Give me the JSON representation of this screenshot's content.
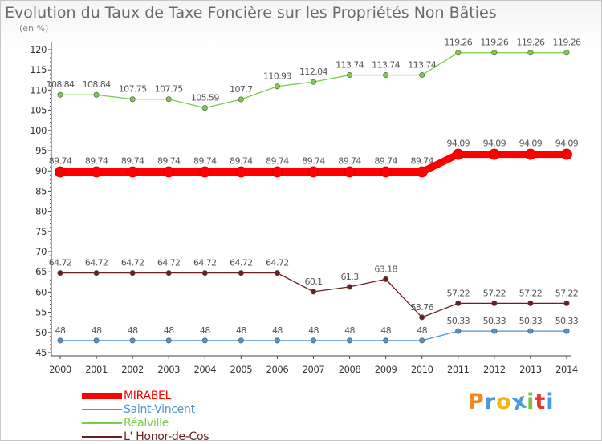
{
  "chart_data": {
    "type": "line",
    "title": "Evolution du Taux de Taxe Foncière sur les Propriétés Non Bâties",
    "unit_label": "(en %)",
    "xlabel": "",
    "ylabel": "(en %)",
    "ylim": [
      45,
      120
    ],
    "ytick_step": 5,
    "yticks": [
      45,
      50,
      55,
      60,
      65,
      70,
      75,
      80,
      85,
      90,
      95,
      100,
      105,
      110,
      115,
      120
    ],
    "categories": [
      "2000",
      "2001",
      "2002",
      "2003",
      "2004",
      "2005",
      "2006",
      "2007",
      "2008",
      "2009",
      "2010",
      "2011",
      "2012",
      "2013",
      "2014"
    ],
    "series": [
      {
        "name": "MIRABEL",
        "color": "#ff0000",
        "emphasis": true,
        "values": [
          89.74,
          89.74,
          89.74,
          89.74,
          89.74,
          89.74,
          89.74,
          89.74,
          89.74,
          89.74,
          89.74,
          94.09,
          94.09,
          94.09,
          94.09
        ],
        "labels": [
          "89.74",
          "89.74",
          "89.74",
          "89.74",
          "89.74",
          "89.74",
          "89.74",
          "89.74",
          "89.74",
          "89.74",
          "89.74",
          "94.09",
          "94.09",
          "94.09",
          "94.09"
        ]
      },
      {
        "name": "Saint-Vincent",
        "color": "#4f94cd",
        "emphasis": false,
        "values": [
          48,
          48,
          48,
          48,
          48,
          48,
          48,
          48,
          48,
          48,
          48,
          50.33,
          50.33,
          50.33,
          50.33
        ],
        "labels": [
          "48",
          "48",
          "48",
          "48",
          "48",
          "48",
          "48",
          "48",
          "48",
          "48",
          "48",
          "50.33",
          "50.33",
          "50.33",
          "50.33"
        ]
      },
      {
        "name": "Réalville",
        "color": "#7acc4a",
        "emphasis": false,
        "values": [
          108.84,
          108.84,
          107.75,
          107.75,
          105.59,
          107.7,
          110.93,
          112.04,
          113.74,
          113.74,
          113.74,
          119.26,
          119.26,
          119.26,
          119.26
        ],
        "labels": [
          "108.84",
          "108.84",
          "107.75",
          "107.75",
          "105.59",
          "107.7",
          "110.93",
          "112.04",
          "113.74",
          "113.74",
          "113.74",
          "119.26",
          "119.26",
          "119.26",
          "119.26"
        ]
      },
      {
        "name": "L' Honor-de-Cos",
        "color": "#6b1f1f",
        "emphasis": false,
        "values": [
          64.72,
          64.72,
          64.72,
          64.72,
          64.72,
          64.72,
          64.72,
          60.1,
          61.3,
          63.18,
          53.76,
          57.22,
          57.22,
          57.22,
          57.22
        ],
        "labels": [
          "64.72",
          "64.72",
          "64.72",
          "64.72",
          "64.72",
          "64.72",
          "64.72",
          "60.1",
          "61.3",
          "63.18",
          "53.76",
          "57.22",
          "57.22",
          "57.22",
          "57.22"
        ]
      }
    ],
    "legend_position": "bottom-left",
    "grid": false
  },
  "brand": {
    "text": "Proxiti",
    "colors": [
      "#f08a1c",
      "#4a9be0",
      "#f0b41c",
      "#4a9be0",
      "#7cc242",
      "#e03a2a",
      "#4a9be0"
    ]
  }
}
